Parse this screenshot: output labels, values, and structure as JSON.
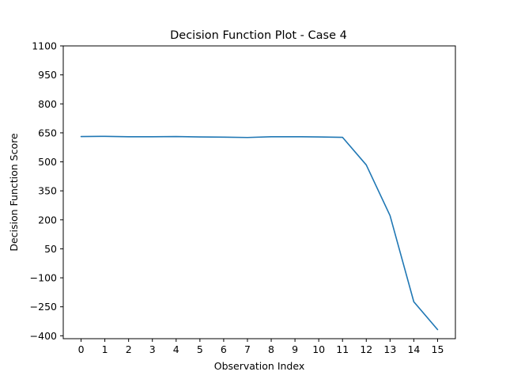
{
  "chart_data": {
    "type": "line",
    "title": "Decision Function Plot - Case 4",
    "xlabel": "Observation Index",
    "ylabel": "Decision Function Score",
    "x": [
      0,
      1,
      2,
      3,
      4,
      5,
      6,
      7,
      8,
      9,
      10,
      11,
      12,
      13,
      14,
      15
    ],
    "xlim": [
      -0.75,
      15.75
    ],
    "ylim": [
      -415,
      1100
    ],
    "yticks": [
      -400,
      -250,
      -100,
      50,
      200,
      350,
      500,
      650,
      800,
      950,
      1100
    ],
    "ytick_labels": [
      "−400",
      "−250",
      "−100",
      "50",
      "200",
      "350",
      "500",
      "650",
      "800",
      "950",
      "1100"
    ],
    "grid": false,
    "series": [
      {
        "color": "#1f77b4",
        "values": [
          631,
          632,
          630,
          630,
          631,
          629,
          628,
          626,
          630,
          630,
          629,
          627,
          484,
          222,
          -224,
          -368
        ]
      }
    ]
  }
}
